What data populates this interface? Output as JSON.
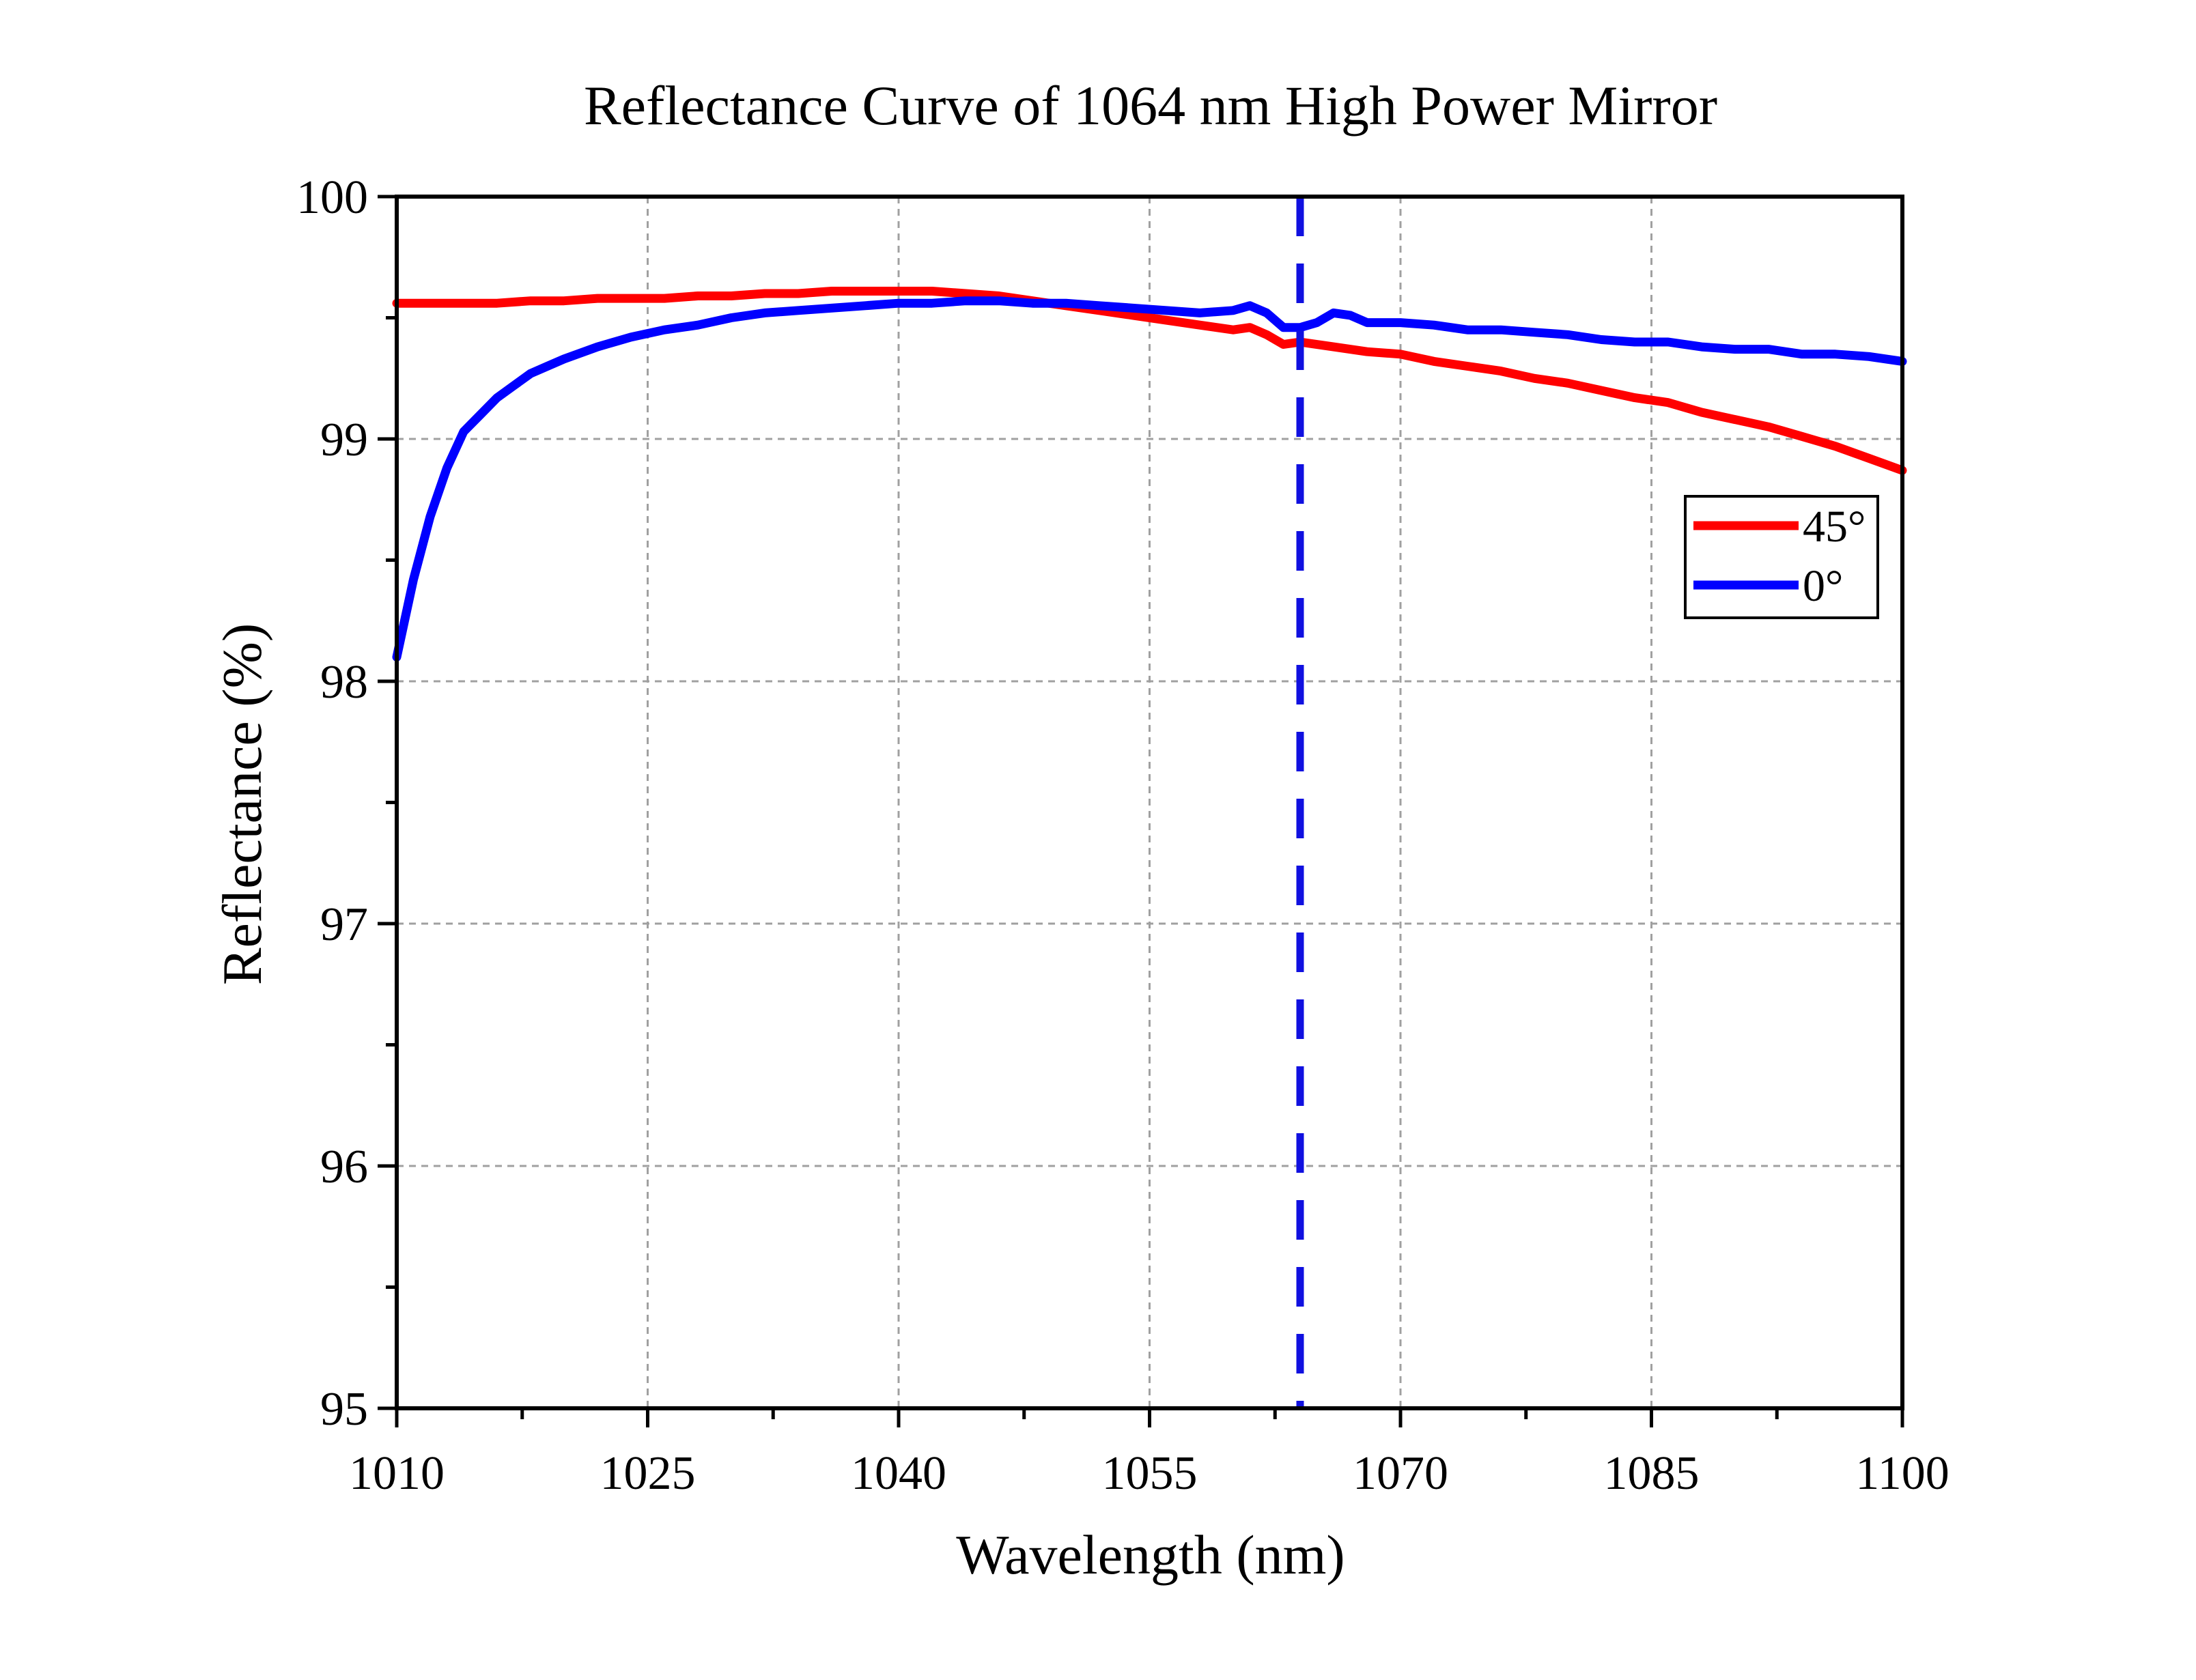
{
  "chart_data": {
    "type": "line",
    "title": "Reflectance Curve of 1064 nm High Power Mirror",
    "xlabel": "Wavelength (nm)",
    "ylabel": "Reflectance (%)",
    "xlim": [
      1010,
      1100
    ],
    "ylim": [
      95,
      100
    ],
    "xticks": [
      1010,
      1025,
      1040,
      1055,
      1070,
      1085,
      1100
    ],
    "yticks": [
      95,
      96,
      97,
      98,
      99,
      100
    ],
    "grid": true,
    "legend_position": "right",
    "reference_line": {
      "x": 1064,
      "style": "dashed",
      "color": "#1010e0"
    },
    "series": [
      {
        "name": "45°",
        "color": "#ff0000",
        "x": [
          1010,
          1012,
          1014,
          1016,
          1018,
          1020,
          1022,
          1024,
          1026,
          1028,
          1030,
          1032,
          1034,
          1036,
          1038,
          1040,
          1042,
          1044,
          1046,
          1048,
          1050,
          1052,
          1054,
          1056,
          1058,
          1060,
          1061,
          1062,
          1063,
          1064,
          1066,
          1068,
          1070,
          1072,
          1074,
          1076,
          1078,
          1080,
          1082,
          1084,
          1086,
          1088,
          1090,
          1092,
          1094,
          1096,
          1098,
          1100
        ],
        "values": [
          99.56,
          99.56,
          99.56,
          99.56,
          99.57,
          99.57,
          99.58,
          99.58,
          99.58,
          99.59,
          99.59,
          99.6,
          99.6,
          99.61,
          99.61,
          99.61,
          99.61,
          99.6,
          99.59,
          99.57,
          99.55,
          99.53,
          99.51,
          99.49,
          99.47,
          99.45,
          99.46,
          99.43,
          99.39,
          99.4,
          99.38,
          99.36,
          99.35,
          99.32,
          99.3,
          99.28,
          99.25,
          99.23,
          99.2,
          99.17,
          99.15,
          99.11,
          99.08,
          99.05,
          99.01,
          98.97,
          98.92,
          98.87
        ]
      },
      {
        "name": "0°",
        "color": "#0000ff",
        "x": [
          1010,
          1011,
          1012,
          1013,
          1014,
          1015,
          1016,
          1017,
          1018,
          1019,
          1020,
          1022,
          1024,
          1026,
          1028,
          1030,
          1032,
          1034,
          1036,
          1038,
          1040,
          1042,
          1044,
          1046,
          1048,
          1050,
          1052,
          1054,
          1056,
          1058,
          1060,
          1061,
          1062,
          1063,
          1064,
          1065,
          1066,
          1067,
          1068,
          1070,
          1072,
          1074,
          1076,
          1078,
          1080,
          1082,
          1084,
          1086,
          1088,
          1090,
          1092,
          1094,
          1096,
          1098,
          1100
        ],
        "values": [
          98.1,
          98.42,
          98.68,
          98.88,
          99.03,
          99.1,
          99.17,
          99.22,
          99.27,
          99.3,
          99.33,
          99.38,
          99.42,
          99.45,
          99.47,
          99.5,
          99.52,
          99.53,
          99.54,
          99.55,
          99.56,
          99.56,
          99.57,
          99.57,
          99.56,
          99.56,
          99.55,
          99.54,
          99.53,
          99.52,
          99.53,
          99.55,
          99.52,
          99.46,
          99.46,
          99.48,
          99.52,
          99.51,
          99.48,
          99.48,
          99.47,
          99.45,
          99.45,
          99.44,
          99.43,
          99.41,
          99.4,
          99.4,
          99.38,
          99.37,
          99.37,
          99.35,
          99.35,
          99.34,
          99.32
        ]
      }
    ]
  }
}
